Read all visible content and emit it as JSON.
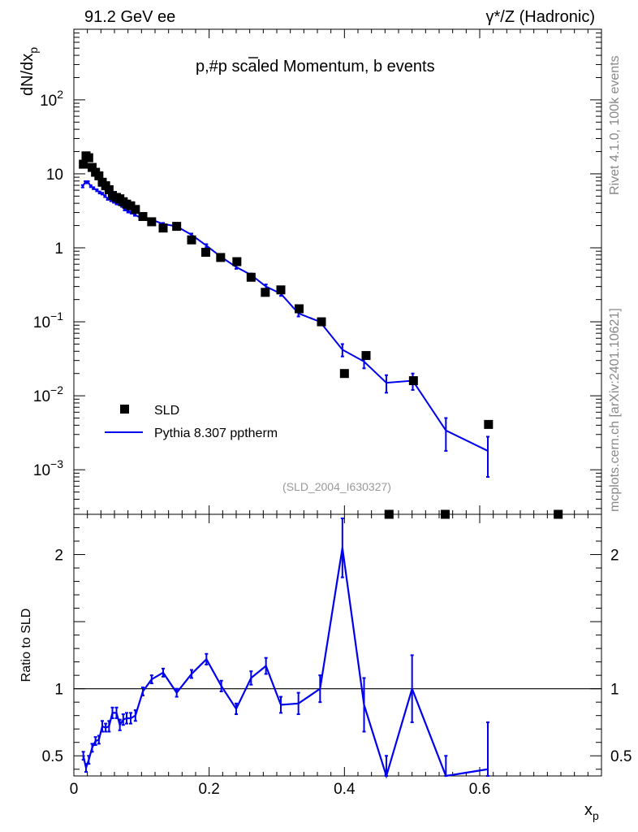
{
  "header": {
    "left": "91.2 GeV ee",
    "right": "γ*/Z (Hadronic)"
  },
  "side": {
    "rivet": "Rivet 4.1.0,  100k events",
    "mcplots": "mcplots.cern.ch [arXiv:2401.10621]"
  },
  "chart_data": {
    "type": "scatter",
    "title": "p,#p̄ scaled Momentum, b events",
    "title_main": "p,#p",
    "title_bar": "̄",
    "title_bar_base": "p",
    "title_rest": " scaled Momentum, b events",
    "analysis_id": "(SLD_2004_I630327)",
    "ylabel_main": "dN/dx",
    "ylabel_sub": "p",
    "xlabel_main": "x",
    "xlabel_sub": "p",
    "ratio_ylabel": "Ratio to SLD",
    "xlim": [
      0,
      0.78
    ],
    "ylim_log": [
      0.00025,
      900
    ],
    "ratio_ylim": [
      0.35,
      2.3
    ],
    "x_ticks": [
      "0",
      "0.2",
      "0.4",
      "0.6"
    ],
    "x_tick_values": [
      0,
      0.2,
      0.4,
      0.6
    ],
    "y_ticks": [
      {
        "value": 100,
        "base": "10",
        "exp": "2"
      },
      {
        "value": 10,
        "base": "10",
        "exp": ""
      },
      {
        "value": 1,
        "base": "1",
        "exp": ""
      },
      {
        "value": 0.1,
        "base": "10",
        "exp": "−1"
      },
      {
        "value": 0.01,
        "base": "10",
        "exp": "−2"
      },
      {
        "value": 0.001,
        "base": "10",
        "exp": "−3"
      }
    ],
    "ratio_ticks": [
      "0.5",
      "1",
      "2"
    ],
    "ratio_tick_values": [
      0.5,
      1,
      2
    ],
    "legend": {
      "position": "bottom-left",
      "data_label": "SLD",
      "mc_label": "Pythia 8.307 pptherm"
    },
    "series": [
      {
        "name": "SLD",
        "x": [
          0.014,
          0.018,
          0.022,
          0.027,
          0.032,
          0.037,
          0.042,
          0.047,
          0.052,
          0.057,
          0.063,
          0.068,
          0.073,
          0.078,
          0.084,
          0.091,
          0.102,
          0.115,
          0.132,
          0.152,
          0.174,
          0.195,
          0.217,
          0.241,
          0.262,
          0.283,
          0.306,
          0.333,
          0.366,
          0.4,
          0.432,
          0.466,
          0.502,
          0.549,
          0.613,
          0.716
        ],
        "y": [
          13.5,
          17.5,
          16.5,
          12.2,
          10.5,
          9.4,
          7.7,
          6.9,
          6.1,
          5.1,
          4.8,
          4.6,
          4.2,
          3.9,
          3.7,
          3.3,
          2.65,
          2.25,
          1.85,
          1.95,
          1.28,
          0.87,
          0.74,
          0.65,
          0.4,
          0.25,
          0.27,
          0.15,
          0.1,
          0.02,
          0.035,
          0.00021,
          0.016,
          0.00021,
          0.0041,
          0.00021
        ]
      },
      {
        "name": "Pythia 8.307 pptherm",
        "x": [
          0.013,
          0.017,
          0.021,
          0.025,
          0.029,
          0.034,
          0.038,
          0.042,
          0.046,
          0.05,
          0.055,
          0.059,
          0.063,
          0.067,
          0.071,
          0.075,
          0.08,
          0.085,
          0.09,
          0.1,
          0.115,
          0.132,
          0.152,
          0.174,
          0.196,
          0.218,
          0.24,
          0.262,
          0.284,
          0.306,
          0.332,
          0.364,
          0.397,
          0.429,
          0.462,
          0.501,
          0.55,
          0.612
        ],
        "y": [
          6.8,
          7.7,
          7.7,
          6.8,
          6.4,
          6.0,
          5.6,
          5.4,
          5.0,
          4.6,
          4.4,
          4.2,
          4.0,
          3.9,
          3.7,
          3.3,
          3.1,
          3.0,
          2.8,
          2.5,
          2.4,
          2.1,
          1.95,
          1.5,
          1.07,
          0.75,
          0.55,
          0.43,
          0.3,
          0.24,
          0.13,
          0.1,
          0.042,
          0.029,
          0.015,
          0.016,
          0.0034,
          0.0018
        ],
        "err": [
          0.25,
          0.25,
          0.25,
          0.2,
          0.2,
          0.18,
          0.18,
          0.15,
          0.15,
          0.15,
          0.14,
          0.13,
          0.13,
          0.12,
          0.12,
          0.1,
          0.1,
          0.1,
          0.09,
          0.08,
          0.08,
          0.07,
          0.07,
          0.06,
          0.05,
          0.035,
          0.03,
          0.02,
          0.02,
          0.016,
          0.012,
          0.01,
          0.008,
          0.0055,
          0.004,
          0.004,
          0.0016,
          0.001
        ]
      }
    ],
    "ratio": {
      "x": [
        0.014,
        0.018,
        0.022,
        0.027,
        0.032,
        0.037,
        0.042,
        0.047,
        0.052,
        0.057,
        0.063,
        0.068,
        0.073,
        0.078,
        0.084,
        0.091,
        0.102,
        0.115,
        0.132,
        0.152,
        0.174,
        0.196,
        0.218,
        0.24,
        0.262,
        0.284,
        0.306,
        0.332,
        0.364,
        0.397,
        0.429,
        0.462,
        0.5,
        0.55,
        0.612
      ],
      "y": [
        0.5,
        0.41,
        0.47,
        0.56,
        0.61,
        0.62,
        0.72,
        0.71,
        0.72,
        0.82,
        0.82,
        0.73,
        0.77,
        0.78,
        0.78,
        0.8,
        0.98,
        1.07,
        1.12,
        0.97,
        1.11,
        1.22,
        1.02,
        0.85,
        1.08,
        1.17,
        0.88,
        0.89,
        1.0,
        2.05,
        0.88,
        0.3,
        1.0,
        0.3,
        0.4
      ],
      "err": [
        0.03,
        0.03,
        0.03,
        0.03,
        0.03,
        0.03,
        0.04,
        0.03,
        0.04,
        0.04,
        0.04,
        0.04,
        0.04,
        0.04,
        0.04,
        0.04,
        0.03,
        0.03,
        0.03,
        0.03,
        0.03,
        0.04,
        0.04,
        0.04,
        0.05,
        0.06,
        0.06,
        0.08,
        0.1,
        0.22,
        0.2,
        0.2,
        0.25,
        0.2,
        0.35
      ]
    }
  }
}
